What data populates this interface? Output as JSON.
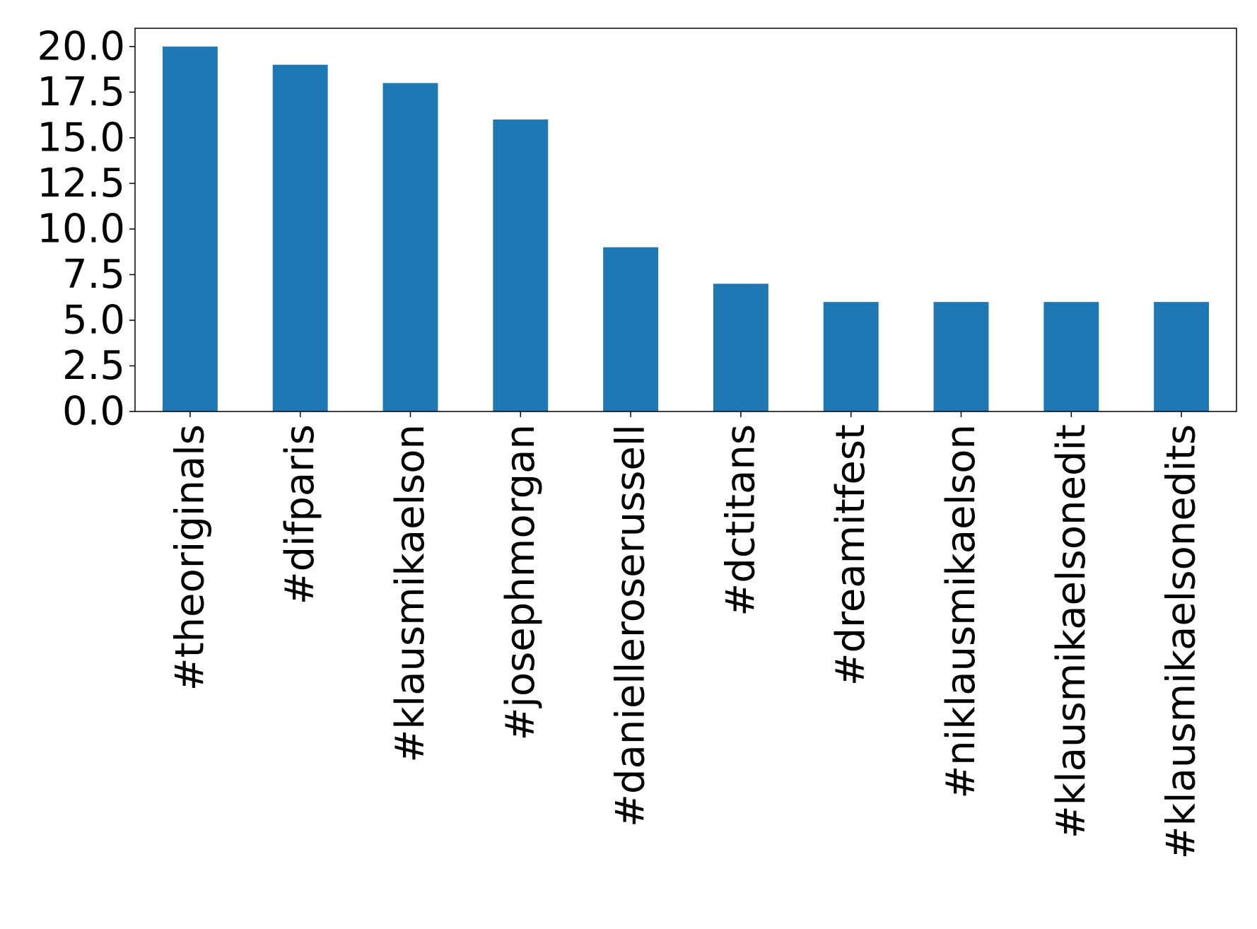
{
  "chart_data": {
    "type": "bar",
    "categories": [
      "#theoriginals",
      "#difparis",
      "#klausmikaelson",
      "#josephmorgan",
      "#danielleroserussell",
      "#dctitans",
      "#dreamitfest",
      "#niklausmikaelson",
      "#klausmikaelsonedit",
      "#klausmikaelsonedits"
    ],
    "values": [
      20,
      19,
      18,
      16,
      9,
      7,
      6,
      6,
      6,
      6
    ],
    "yticks": [
      "0.0",
      "2.5",
      "5.0",
      "7.5",
      "10.0",
      "12.5",
      "15.0",
      "17.5",
      "20.0"
    ],
    "ylim": [
      0,
      21
    ],
    "bar_color": "#1f77b4",
    "grid": false,
    "legend": false,
    "title": "",
    "xlabel": "",
    "ylabel": ""
  }
}
